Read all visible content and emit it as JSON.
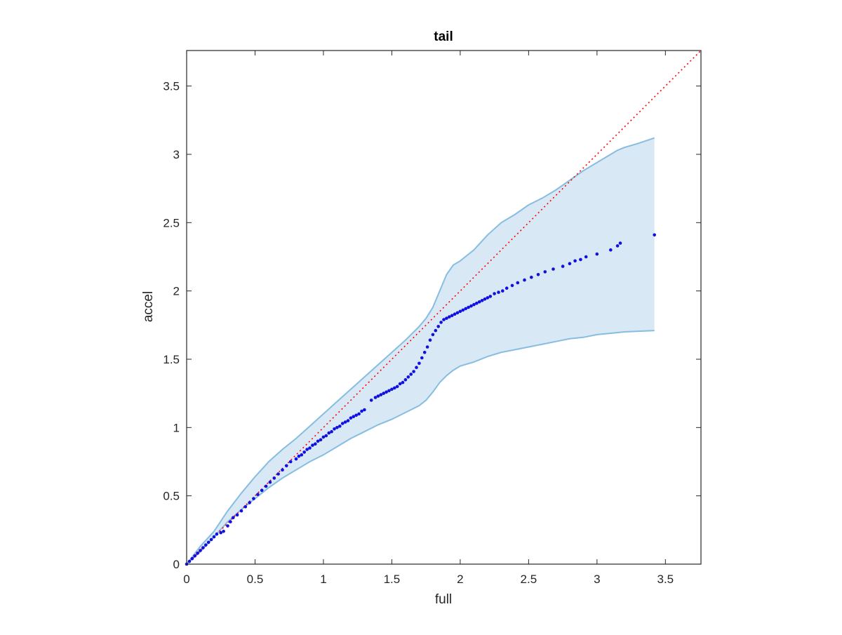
{
  "chart_data": {
    "type": "scatter",
    "title": "tail",
    "xlabel": "full",
    "ylabel": "accel",
    "xlim": [
      0,
      3.76
    ],
    "ylim": [
      0,
      3.76
    ],
    "xticks": [
      "0",
      "0.5",
      "1",
      "1.5",
      "2",
      "2.5",
      "3",
      "3.5"
    ],
    "yticks": [
      "0",
      "0.5",
      "1",
      "1.5",
      "2",
      "2.5",
      "3",
      "3.5"
    ],
    "xtick_values": [
      0,
      0.5,
      1,
      1.5,
      2,
      2.5,
      3,
      3.5
    ],
    "ytick_values": [
      0,
      0.5,
      1,
      1.5,
      2,
      2.5,
      3,
      3.5
    ],
    "grid": false,
    "colors": {
      "points": "#1010e0",
      "band_fill": "#d8e8f4",
      "band_edge": "#86bde0",
      "reference": "#ff0000",
      "axes": "#262626"
    },
    "reference_line": {
      "style": "dotted",
      "x": [
        0,
        3.76
      ],
      "y": [
        0,
        3.76
      ]
    },
    "band": {
      "x": [
        0,
        0.1,
        0.2,
        0.3,
        0.4,
        0.5,
        0.6,
        0.7,
        0.8,
        0.9,
        1.0,
        1.1,
        1.2,
        1.3,
        1.4,
        1.5,
        1.6,
        1.7,
        1.75,
        1.8,
        1.85,
        1.9,
        1.95,
        2.0,
        2.1,
        2.2,
        2.3,
        2.4,
        2.5,
        2.6,
        2.7,
        2.8,
        2.9,
        3.0,
        3.1,
        3.15,
        3.2,
        3.3,
        3.42
      ],
      "upper": [
        0,
        0.13,
        0.24,
        0.39,
        0.52,
        0.64,
        0.75,
        0.84,
        0.92,
        1.01,
        1.1,
        1.19,
        1.28,
        1.37,
        1.46,
        1.55,
        1.64,
        1.74,
        1.8,
        1.88,
        2.0,
        2.12,
        2.19,
        2.22,
        2.3,
        2.41,
        2.5,
        2.56,
        2.63,
        2.68,
        2.74,
        2.81,
        2.88,
        2.94,
        3.0,
        3.03,
        3.05,
        3.08,
        3.12
      ],
      "lower": [
        0,
        0.09,
        0.2,
        0.31,
        0.4,
        0.48,
        0.56,
        0.63,
        0.69,
        0.75,
        0.8,
        0.86,
        0.92,
        0.97,
        1.02,
        1.06,
        1.11,
        1.16,
        1.2,
        1.26,
        1.33,
        1.38,
        1.42,
        1.45,
        1.48,
        1.52,
        1.55,
        1.57,
        1.59,
        1.61,
        1.63,
        1.65,
        1.66,
        1.68,
        1.69,
        1.695,
        1.7,
        1.705,
        1.71
      ]
    },
    "series": [
      {
        "x": [
          0.0,
          0.02,
          0.04,
          0.06,
          0.08,
          0.1,
          0.12,
          0.14,
          0.16,
          0.18,
          0.2,
          0.22,
          0.25,
          0.27,
          0.3,
          0.32,
          0.34,
          0.37,
          0.4,
          0.43,
          0.46,
          0.49,
          0.52,
          0.55,
          0.58,
          0.61,
          0.64,
          0.67,
          0.7,
          0.73,
          0.76,
          0.8,
          0.82,
          0.84,
          0.86,
          0.88,
          0.9,
          0.92,
          0.94,
          0.96,
          0.98,
          1.0,
          1.02,
          1.04,
          1.06,
          1.08,
          1.1,
          1.12,
          1.14,
          1.16,
          1.18,
          1.2,
          1.22,
          1.24,
          1.26,
          1.28,
          1.3,
          1.35,
          1.38,
          1.4,
          1.42,
          1.44,
          1.46,
          1.48,
          1.5,
          1.52,
          1.54,
          1.56,
          1.58,
          1.6,
          1.62,
          1.64,
          1.66,
          1.68,
          1.7,
          1.72,
          1.74,
          1.76,
          1.78,
          1.8,
          1.82,
          1.84,
          1.86,
          1.88,
          1.9,
          1.92,
          1.94,
          1.96,
          1.98,
          2.0,
          2.02,
          2.04,
          2.06,
          2.08,
          2.1,
          2.12,
          2.14,
          2.16,
          2.18,
          2.2,
          2.22,
          2.25,
          2.28,
          2.31,
          2.34,
          2.38,
          2.42,
          2.47,
          2.52,
          2.57,
          2.62,
          2.68,
          2.75,
          2.8,
          2.84,
          2.88,
          2.92,
          3.0,
          3.1,
          3.15,
          3.17,
          3.42
        ],
        "y": [
          0.0,
          0.02,
          0.04,
          0.06,
          0.08,
          0.1,
          0.12,
          0.14,
          0.16,
          0.18,
          0.2,
          0.22,
          0.23,
          0.24,
          0.28,
          0.31,
          0.34,
          0.36,
          0.39,
          0.42,
          0.45,
          0.48,
          0.51,
          0.54,
          0.57,
          0.6,
          0.63,
          0.66,
          0.69,
          0.72,
          0.75,
          0.77,
          0.79,
          0.8,
          0.82,
          0.84,
          0.85,
          0.87,
          0.88,
          0.9,
          0.91,
          0.93,
          0.94,
          0.96,
          0.97,
          0.99,
          1.0,
          1.01,
          1.03,
          1.04,
          1.05,
          1.07,
          1.08,
          1.09,
          1.1,
          1.12,
          1.13,
          1.2,
          1.22,
          1.23,
          1.24,
          1.25,
          1.26,
          1.27,
          1.28,
          1.29,
          1.3,
          1.32,
          1.33,
          1.35,
          1.37,
          1.39,
          1.41,
          1.44,
          1.47,
          1.51,
          1.55,
          1.59,
          1.64,
          1.68,
          1.71,
          1.74,
          1.77,
          1.79,
          1.8,
          1.81,
          1.82,
          1.83,
          1.84,
          1.85,
          1.86,
          1.87,
          1.88,
          1.89,
          1.9,
          1.91,
          1.92,
          1.93,
          1.94,
          1.95,
          1.96,
          1.98,
          1.99,
          2.0,
          2.02,
          2.04,
          2.06,
          2.08,
          2.1,
          2.12,
          2.14,
          2.16,
          2.18,
          2.2,
          2.22,
          2.23,
          2.25,
          2.27,
          2.3,
          2.33,
          2.35,
          2.41
        ]
      }
    ]
  }
}
